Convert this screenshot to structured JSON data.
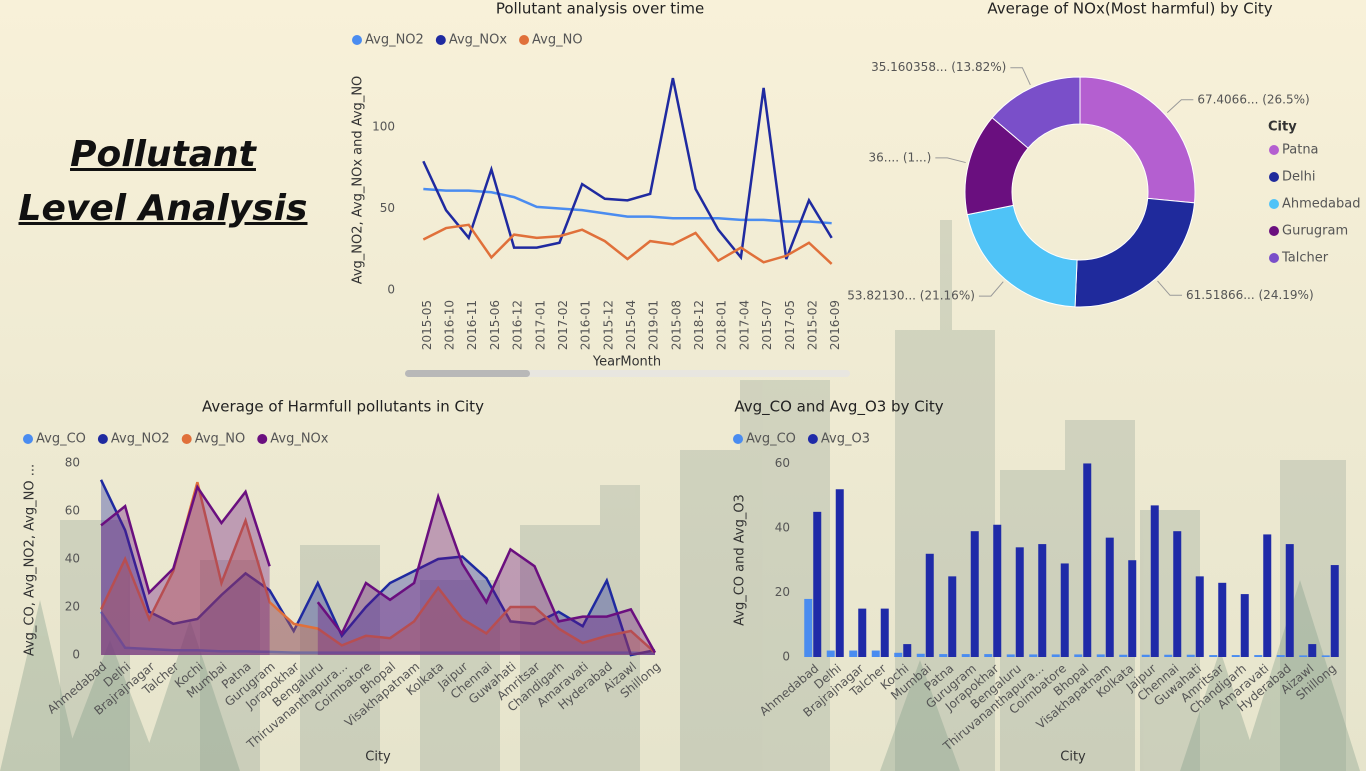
{
  "header": {
    "title_lines": [
      "Pollutant",
      "Level Analysis"
    ]
  },
  "chart_data": [
    {
      "type": "line",
      "title": "Pollutant analysis over time",
      "x_label": "YearMonth",
      "y_label": "Avg_NO2, Avg_NOx and Avg_NO",
      "categories": [
        "2015-05",
        "2016-10",
        "2016-11",
        "2015-06",
        "2016-12",
        "2017-01",
        "2017-02",
        "2016-01",
        "2015-12",
        "2015-04",
        "2019-01",
        "2015-08",
        "2018-12",
        "2018-01",
        "2017-04",
        "2015-07",
        "2017-05",
        "2015-02",
        "2016-09"
      ],
      "series": [
        {
          "name": "Avg_NO2",
          "color": "#4a8cf0",
          "values": [
            62,
            61,
            61,
            60,
            57,
            51,
            50,
            49,
            47,
            45,
            45,
            44,
            44,
            44,
            43,
            43,
            42,
            42,
            41
          ]
        },
        {
          "name": "Avg_NOx",
          "color": "#1f2aa0",
          "values": [
            79,
            49,
            32,
            74,
            26,
            26,
            29,
            65,
            56,
            55,
            59,
            130,
            62,
            37,
            20,
            124,
            19,
            55,
            32
          ]
        },
        {
          "name": "Avg_NO",
          "color": "#e0703a",
          "values": [
            31,
            38,
            40,
            20,
            34,
            32,
            33,
            37,
            30,
            19,
            30,
            28,
            35,
            18,
            26,
            17,
            21,
            29,
            16
          ]
        }
      ],
      "ylim": [
        0,
        135
      ],
      "yticks": [
        0,
        50,
        100
      ],
      "grid": false
    },
    {
      "type": "pie",
      "title": "Average of NOx(Most harmful) by City",
      "legend_title": "City",
      "categories": [
        "Patna",
        "Delhi",
        "Ahmedabad",
        "Gurugram",
        "Talcher"
      ],
      "values": [
        67.4066,
        61.51866,
        53.8213,
        36.45,
        35.160358
      ],
      "value_labels": [
        "67.4066... (26.5%)",
        "61.51866... (24.19%)",
        "53.82130... (21.16%)",
        "36.... (1...)",
        "35.160358... (13.82%)"
      ],
      "colors": [
        "#b45fd0",
        "#1f2a9c",
        "#4fc3f7",
        "#6a0f7f",
        "#7a4fc9"
      ]
    },
    {
      "type": "area",
      "title": "Average of Harmfull pollutants in City",
      "x_label": "City",
      "y_label": "Avg_CO, Avg_NO2, Avg_NO ...",
      "categories": [
        "Ahmedabad",
        "Delhi",
        "Brajrajnagar",
        "Talcher",
        "Kochi",
        "Mumbai",
        "Patna",
        "Gurugram",
        "Jorapokhar",
        "Bengaluru",
        "Thiruvananthapura...",
        "Coimbatore",
        "Bhopal",
        "Visakhapatnam",
        "Kolkata",
        "Jaipur",
        "Chennai",
        "Guwahati",
        "Amritsar",
        "Chandigarh",
        "Amaravati",
        "Hyderabad",
        "Aizawl",
        "Shillong"
      ],
      "series": [
        {
          "name": "Avg_CO",
          "color": "#4a8cf0",
          "values": [
            18,
            3,
            2.5,
            2,
            2,
            1.5,
            1.5,
            1.3,
            1,
            1,
            1,
            1,
            1,
            1,
            1,
            1,
            1,
            1,
            1,
            1,
            1,
            1,
            1,
            0.5
          ]
        },
        {
          "name": "Avg_NO2",
          "color": "#1f2aa0",
          "values": [
            73,
            52,
            18,
            13,
            15,
            25,
            34,
            27,
            10,
            30,
            8,
            20,
            30,
            35,
            40,
            41,
            32,
            14,
            13,
            18,
            12,
            31,
            0,
            2
          ]
        },
        {
          "name": "Avg_NO",
          "color": "#e0703a",
          "values": [
            19,
            40,
            15,
            35,
            72,
            30,
            56,
            22,
            13,
            11,
            4,
            8,
            7,
            14,
            28,
            15,
            9,
            20,
            20,
            11,
            5,
            8,
            10,
            1
          ]
        },
        {
          "name": "Avg_NOx",
          "color": "#6a0f7f",
          "values": [
            54,
            62,
            26,
            36,
            70,
            55,
            68,
            37,
            null,
            22,
            9,
            30,
            23,
            30,
            66,
            38,
            22,
            44,
            37,
            14,
            16,
            16,
            19,
            1
          ]
        }
      ],
      "ylim": [
        0,
        80
      ],
      "yticks": [
        0,
        20,
        40,
        60,
        80
      ],
      "grid": false
    },
    {
      "type": "bar",
      "title": "Avg_CO and Avg_O3 by City",
      "x_label": "City",
      "y_label": "Avg_CO and Avg_O3",
      "categories": [
        "Ahmedabad",
        "Delhi",
        "Brajrajnagar",
        "Talcher",
        "Kochi",
        "Mumbai",
        "Patna",
        "Gurugram",
        "Jorapokhar",
        "Bengaluru",
        "Thiruvananthapura...",
        "Coimbatore",
        "Bhopal",
        "Visakhapatnam",
        "Kolkata",
        "Jaipur",
        "Chennai",
        "Guwahati",
        "Amritsar",
        "Chandigarh",
        "Amaravati",
        "Hyderabad",
        "Aizawl",
        "Shillong"
      ],
      "series": [
        {
          "name": "Avg_CO",
          "color": "#4a8cf0",
          "values": [
            18,
            2,
            2,
            2,
            1.3,
            1,
            0.9,
            0.9,
            0.9,
            0.8,
            0.8,
            0.8,
            0.8,
            0.8,
            0.7,
            0.7,
            0.7,
            0.7,
            0.6,
            0.6,
            0.6,
            0.6,
            0.5,
            0.5
          ]
        },
        {
          "name": "Avg_O3",
          "color": "#1f2aa8",
          "values": [
            45,
            52,
            15,
            15,
            4,
            32,
            25,
            39,
            41,
            34,
            35,
            29,
            60,
            37,
            30,
            47,
            39,
            25,
            23,
            19.5,
            38,
            35,
            4,
            28.5
          ]
        }
      ],
      "ylim": [
        0,
        62
      ],
      "yticks": [
        0,
        20,
        40,
        60
      ],
      "grid": false
    }
  ]
}
